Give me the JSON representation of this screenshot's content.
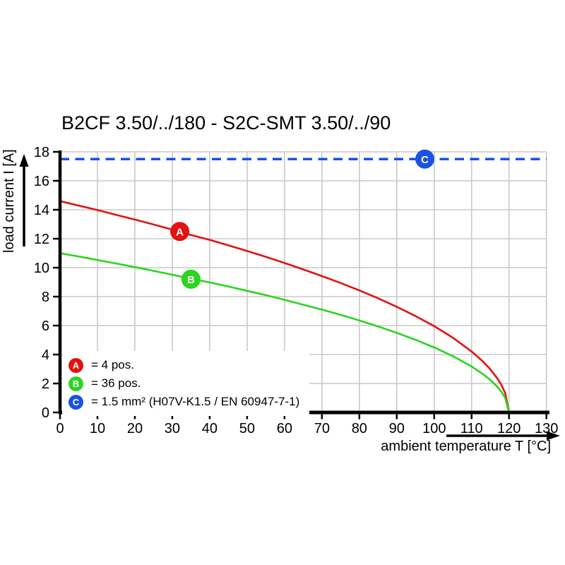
{
  "title": "B2CF 3.50/../180 - S2C-SMT 3.50/../90",
  "axes": {
    "x_label": "ambient temperature T [°C]",
    "y_label": "load current I [A]"
  },
  "legend": {
    "items": [
      {
        "badge": "A",
        "color": "#e31111",
        "text": "= 4 pos."
      },
      {
        "badge": "B",
        "color": "#2bd41e",
        "text": "= 36 pos."
      },
      {
        "badge": "C",
        "color": "#1a52e6",
        "text": "= 1.5 mm² (H07V-K1.5 / EN 60947-7-1)"
      }
    ]
  },
  "colors": {
    "red": "#e31111",
    "green": "#2bd41e",
    "blue": "#1a52e6",
    "grid": "#c9c9c9",
    "axis": "#000000",
    "background": "#ffffff"
  },
  "chart_data": {
    "type": "line",
    "title": "B2CF 3.50/../180 - S2C-SMT 3.50/../90",
    "xlabel": "ambient temperature T [°C]",
    "ylabel": "load current I [A]",
    "xlim": [
      0,
      130
    ],
    "ylim": [
      0,
      18
    ],
    "x_ticks": [
      0,
      10,
      20,
      30,
      40,
      50,
      60,
      70,
      80,
      90,
      100,
      110,
      120,
      130
    ],
    "y_ticks": [
      0,
      2,
      4,
      6,
      8,
      10,
      12,
      14,
      16,
      18
    ],
    "grid": true,
    "legend_position": "inside-bottom-left",
    "series": [
      {
        "name": "A = 4 pos.",
        "color": "#e31111",
        "line_style": "solid",
        "x": [
          0,
          5,
          10,
          15,
          20,
          25,
          30,
          35,
          40,
          45,
          50,
          55,
          60,
          65,
          70,
          75,
          80,
          85,
          90,
          95,
          100,
          105,
          110,
          113,
          115,
          117,
          118,
          119,
          120
        ],
        "y": [
          14.6,
          14.29,
          13.98,
          13.65,
          13.32,
          12.98,
          12.63,
          12.26,
          11.92,
          11.54,
          11.15,
          10.75,
          10.32,
          9.88,
          9.42,
          8.94,
          8.43,
          7.89,
          7.3,
          6.66,
          5.96,
          5.16,
          4.21,
          3.53,
          2.98,
          2.31,
          1.88,
          1.33,
          0
        ]
      },
      {
        "name": "B = 36 pos.",
        "color": "#2bd41e",
        "line_style": "solid",
        "x": [
          0,
          5,
          10,
          15,
          20,
          25,
          30,
          35,
          40,
          45,
          50,
          55,
          60,
          65,
          70,
          75,
          80,
          85,
          90,
          95,
          100,
          105,
          110,
          113,
          115,
          117,
          118,
          119,
          120
        ],
        "y": [
          11,
          10.77,
          10.53,
          10.29,
          10.04,
          9.78,
          9.51,
          9.24,
          8.98,
          8.7,
          8.4,
          8.1,
          7.78,
          7.44,
          7.1,
          6.74,
          6.35,
          5.94,
          5.5,
          5.02,
          4.49,
          3.89,
          3.18,
          2.66,
          2.25,
          1.74,
          1.42,
          1,
          0
        ]
      },
      {
        "name": "C = 1.5 mm² (H07V-K1.5 / EN 60947-7-1)",
        "color": "#1a52e6",
        "line_style": "dashed",
        "x": [
          0,
          130
        ],
        "y": [
          17.5,
          17.5
        ]
      }
    ],
    "point_markers": [
      {
        "label": "A",
        "x": 32,
        "y": 12.5,
        "color": "#e31111"
      },
      {
        "label": "B",
        "x": 35,
        "y": 9.2,
        "color": "#2bd41e"
      },
      {
        "label": "C",
        "x": 97.5,
        "y": 17.5,
        "color": "#1a52e6"
      }
    ]
  }
}
